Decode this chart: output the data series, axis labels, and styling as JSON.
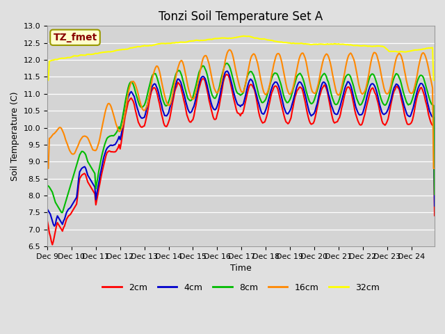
{
  "title": "Tonzi Soil Temperature Set A",
  "xlabel": "Time",
  "ylabel": "Soil Temperature (C)",
  "ylim": [
    6.5,
    13.0
  ],
  "yticks": [
    6.5,
    7.0,
    7.5,
    8.0,
    8.5,
    9.0,
    9.5,
    10.0,
    10.5,
    11.0,
    11.5,
    12.0,
    12.5,
    13.0
  ],
  "n_points": 384,
  "xtick_positions": [
    0,
    24,
    48,
    72,
    96,
    120,
    144,
    168,
    192,
    216,
    240,
    264,
    288,
    312,
    336,
    360
  ],
  "xtick_labels": [
    "Dec 9",
    "Dec 10",
    "Dec 11",
    "Dec 12",
    "Dec 13",
    "Dec 14",
    "Dec 15",
    "Dec 16",
    "Dec 17",
    "Dec 18",
    "Dec 19",
    "Dec 20",
    "Dec 21",
    "Dec 22",
    "Dec 23",
    "Dec 24"
  ],
  "line_colors": [
    "#ff0000",
    "#0000cc",
    "#00bb00",
    "#ff8800",
    "#ffff00"
  ],
  "line_labels": [
    "2cm",
    "4cm",
    "8cm",
    "16cm",
    "32cm"
  ],
  "line_width": 1.5,
  "bg_color": "#e0e0e0",
  "plot_bg_color": "#d4d4d4",
  "annotation_text": "TZ_fmet",
  "annotation_bg": "#ffffcc",
  "annotation_fg": "#880000",
  "annotation_border": "#999900",
  "grid_color": "#ffffff",
  "title_fontsize": 12,
  "axis_fontsize": 9,
  "tick_fontsize": 8,
  "legend_fontsize": 9
}
